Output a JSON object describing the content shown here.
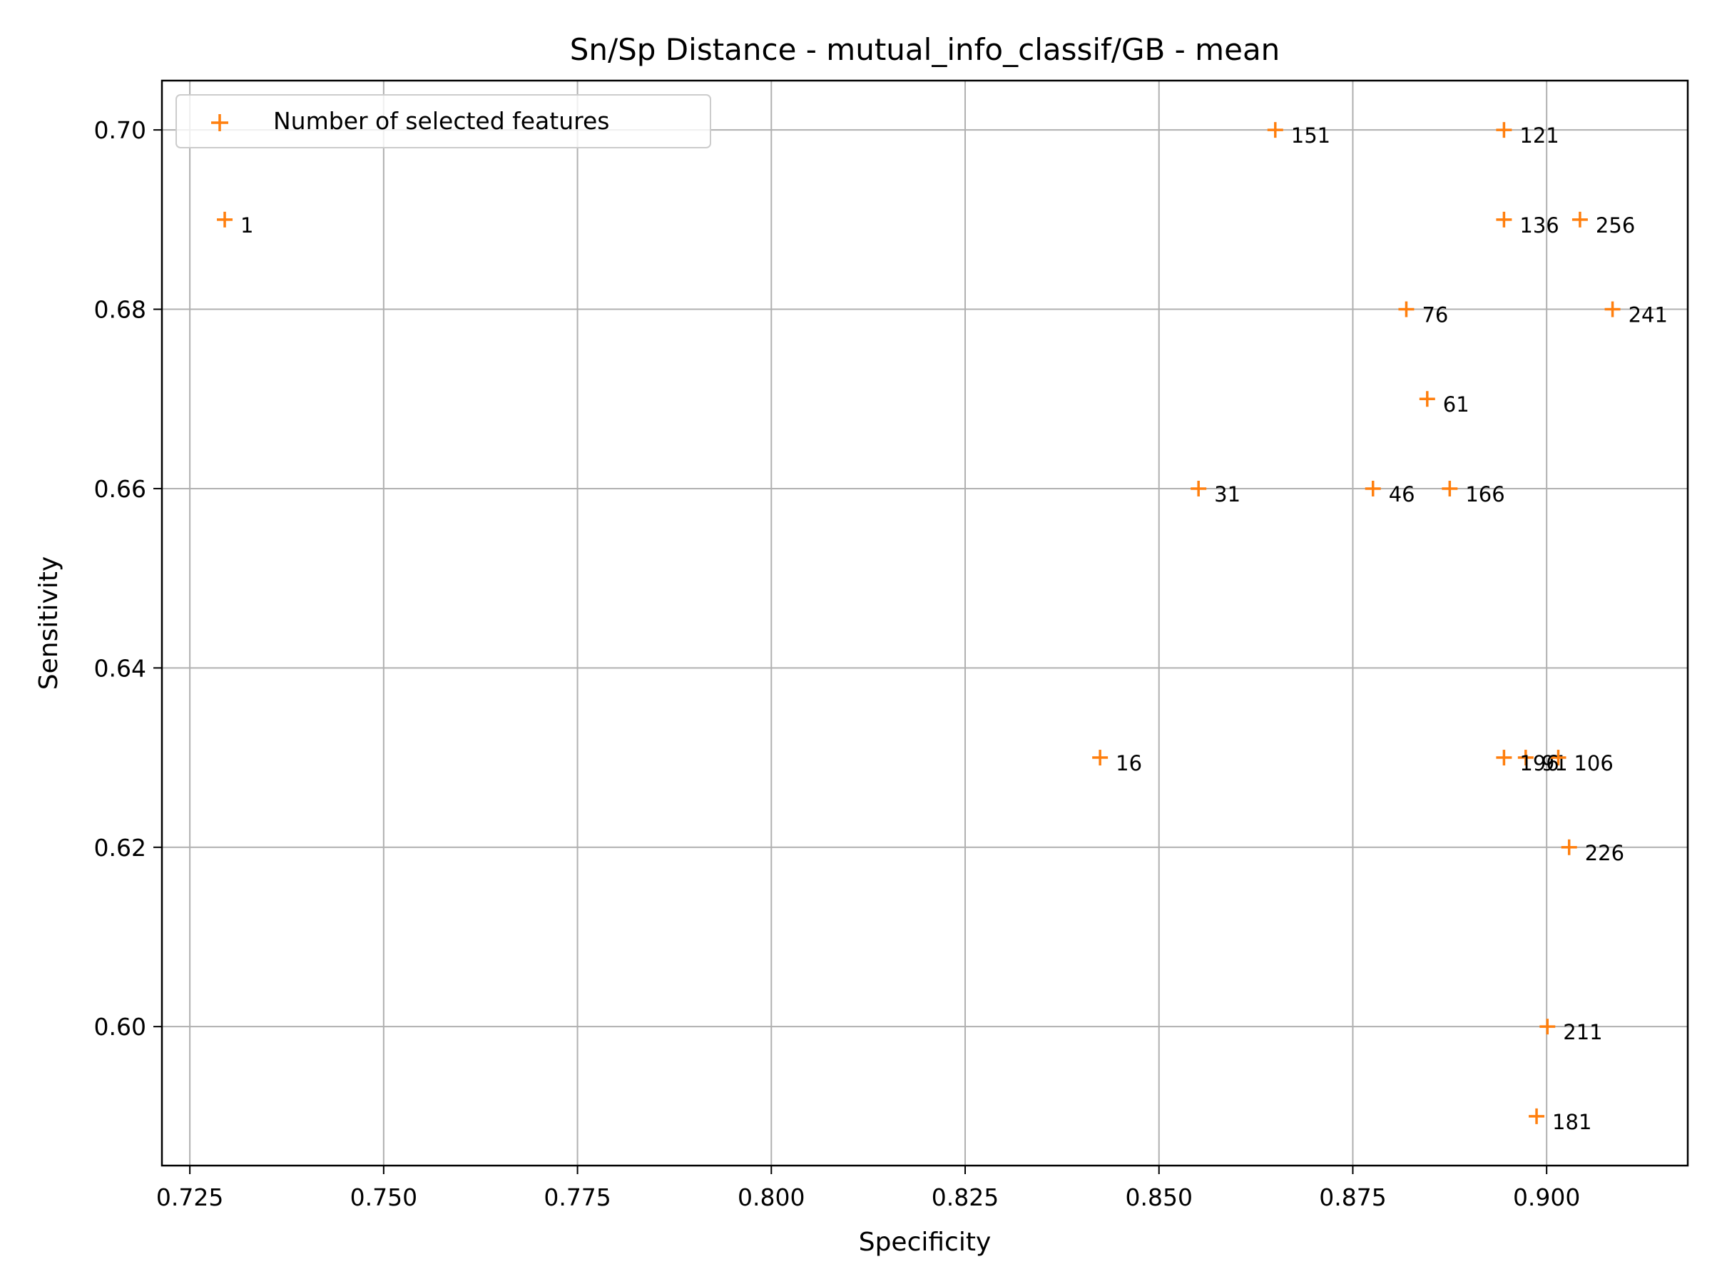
{
  "chart_data": {
    "type": "scatter",
    "title": "Sn/Sp Distance - mutual_info_classif/GB - mean",
    "xlabel": "Specificity",
    "ylabel": "Sensitivity",
    "xlim": [
      0.7214,
      0.9182
    ],
    "ylim": [
      0.5845,
      0.7055
    ],
    "xticks": [
      "0.725",
      "0.750",
      "0.775",
      "0.800",
      "0.825",
      "0.850",
      "0.875",
      "0.900"
    ],
    "xtick_values": [
      0.725,
      0.75,
      0.775,
      0.8,
      0.825,
      0.85,
      0.875,
      0.9
    ],
    "yticks": [
      "0.60",
      "0.62",
      "0.64",
      "0.66",
      "0.68",
      "0.70"
    ],
    "ytick_values": [
      0.6,
      0.62,
      0.64,
      0.66,
      0.68,
      0.7
    ],
    "grid": true,
    "legend": {
      "position": "upper-left",
      "entries": [
        "Number of selected features"
      ]
    },
    "colors": {
      "marker": "#ff7f0e",
      "grid": "#b0b0b0"
    },
    "series": [
      {
        "name": "Number of selected features",
        "marker": "plus",
        "points": [
          {
            "x": 0.7295,
            "y": 0.69,
            "label": "1"
          },
          {
            "x": 0.8424,
            "y": 0.63,
            "label": "16"
          },
          {
            "x": 0.8551,
            "y": 0.66,
            "label": "31"
          },
          {
            "x": 0.8776,
            "y": 0.66,
            "label": "46"
          },
          {
            "x": 0.8846,
            "y": 0.67,
            "label": "61"
          },
          {
            "x": 0.8819,
            "y": 0.68,
            "label": "76"
          },
          {
            "x": 0.8973,
            "y": 0.63,
            "label": "91"
          },
          {
            "x": 0.9015,
            "y": 0.63,
            "label": "106"
          },
          {
            "x": 0.8945,
            "y": 0.7,
            "label": "121"
          },
          {
            "x": 0.8945,
            "y": 0.69,
            "label": "136"
          },
          {
            "x": 0.865,
            "y": 0.7,
            "label": "151"
          },
          {
            "x": 0.8875,
            "y": 0.66,
            "label": "166"
          },
          {
            "x": 0.8987,
            "y": 0.59,
            "label": "181"
          },
          {
            "x": 0.8945,
            "y": 0.63,
            "label": "196"
          },
          {
            "x": 0.9001,
            "y": 0.6,
            "label": "211"
          },
          {
            "x": 0.9029,
            "y": 0.62,
            "label": "226"
          },
          {
            "x": 0.9085,
            "y": 0.68,
            "label": "241"
          },
          {
            "x": 0.9043,
            "y": 0.69,
            "label": "256"
          }
        ]
      }
    ]
  }
}
